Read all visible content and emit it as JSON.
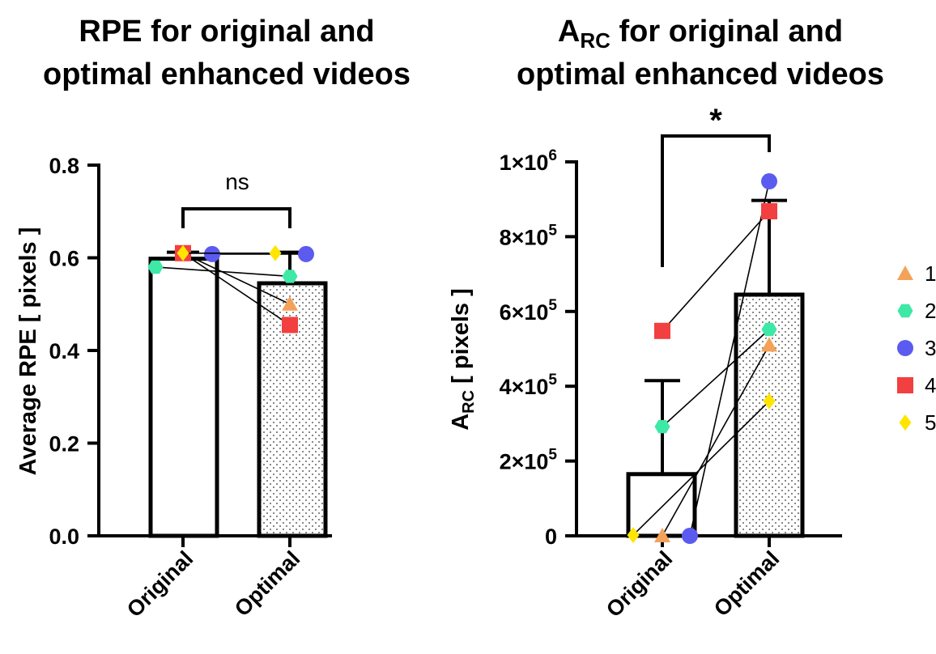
{
  "chart_data": [
    {
      "type": "bar",
      "title_lines": [
        "RPE for original and",
        "optimal enhanced videos"
      ],
      "ylabel": "Average RPE [ pixels ]",
      "categories": [
        "Original",
        "Optimal"
      ],
      "bar_values": [
        0.598,
        0.545
      ],
      "error_upper": [
        0.612,
        0.612
      ],
      "ylim": [
        0,
        0.8
      ],
      "yticks": [
        0.0,
        0.2,
        0.4,
        0.6,
        0.8
      ],
      "ytick_labels": [
        "0.0",
        "0.2",
        "0.4",
        "0.6",
        "0.8"
      ],
      "significance": "ns",
      "series": [
        {
          "name": "1",
          "values": [
            0.61,
            0.5
          ]
        },
        {
          "name": "2",
          "values": [
            0.58,
            0.56
          ]
        },
        {
          "name": "3",
          "values": [
            0.608,
            0.608
          ]
        },
        {
          "name": "4",
          "values": [
            0.61,
            0.455
          ]
        },
        {
          "name": "5",
          "values": [
            0.61,
            0.61
          ]
        }
      ]
    },
    {
      "type": "bar",
      "title_main": "A",
      "title_sub": "RC",
      "title_rest": " for original and",
      "title_line2": "optimal enhanced videos",
      "ylabel_main": "A",
      "ylabel_sub": "RC",
      "ylabel_rest": " [ pixels ]",
      "categories": [
        "Original",
        "Optimal"
      ],
      "bar_values": [
        165000,
        645000
      ],
      "error_upper": [
        415000,
        897000
      ],
      "ylim": [
        0,
        1000000
      ],
      "yticks": [
        0,
        200000,
        400000,
        600000,
        800000,
        1000000
      ],
      "ytick_mantissa": [
        "0",
        "2×10",
        "4×10",
        "6×10",
        "8×10",
        "1×10"
      ],
      "ytick_exp": [
        "",
        "5",
        "5",
        "5",
        "5",
        "6"
      ],
      "significance": "*",
      "series": [
        {
          "name": "1",
          "values": [
            0,
            510000
          ]
        },
        {
          "name": "2",
          "values": [
            292000,
            552000
          ]
        },
        {
          "name": "3",
          "values": [
            0,
            948000
          ]
        },
        {
          "name": "4",
          "values": [
            548000,
            868000
          ]
        },
        {
          "name": "5",
          "values": [
            2000,
            360000
          ]
        }
      ]
    }
  ],
  "legend": {
    "entries": [
      {
        "name": "1",
        "marker": "triangle",
        "color": "#F4A259"
      },
      {
        "name": "2",
        "marker": "hexagon",
        "color": "#3EE8A6"
      },
      {
        "name": "3",
        "marker": "circle",
        "color": "#5B5BF0"
      },
      {
        "name": "4",
        "marker": "square",
        "color": "#F23F3F"
      },
      {
        "name": "5",
        "marker": "diamond",
        "color": "#FFE500"
      }
    ]
  }
}
